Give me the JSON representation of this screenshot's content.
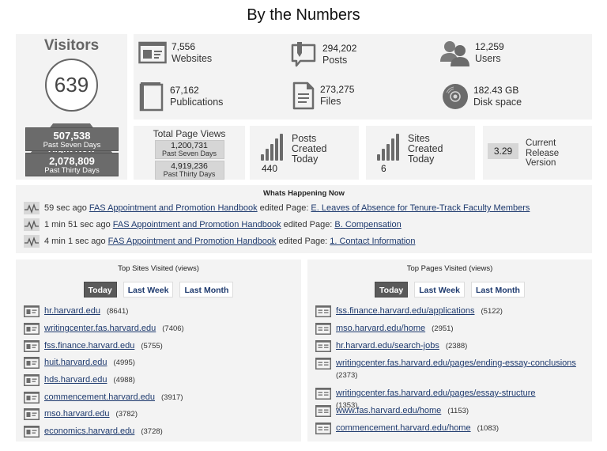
{
  "title": "By the Numbers",
  "visitors": {
    "title": "Visitors",
    "right_now_value": "639",
    "right_now_label": "Right Now",
    "seven_days_value": "507,538",
    "seven_days_label": "Past Seven Days",
    "thirty_days_value": "2,078,809",
    "thirty_days_label": "Past Thirty Days"
  },
  "stats": [
    {
      "icon": "website-icon",
      "value": "7,556",
      "label": "Websites"
    },
    {
      "icon": "posts-icon",
      "value": "294,202",
      "label": "Posts"
    },
    {
      "icon": "users-icon",
      "value": "12,259",
      "label": "Users"
    },
    {
      "icon": "book-icon",
      "value": "67,162",
      "label": "Publications"
    },
    {
      "icon": "file-icon",
      "value": "273,275",
      "label": "Files"
    },
    {
      "icon": "disk-icon",
      "value": "182.43 GB",
      "label": "Disk space"
    }
  ],
  "page_views": {
    "title": "Total Page Views",
    "seven_days_value": "1,200,731",
    "seven_days_label": "Past Seven Days",
    "thirty_days_value": "4,919,236",
    "thirty_days_label": "Past Thirty Days"
  },
  "posts_created": {
    "value": "440",
    "label_lines": [
      "Posts",
      "Created",
      "Today"
    ]
  },
  "sites_created": {
    "value": "6",
    "label_lines": [
      "Sites",
      "Created",
      "Today"
    ]
  },
  "release": {
    "version": "3.29",
    "label_lines": [
      "Current",
      "Release",
      "Version"
    ]
  },
  "happening": {
    "title": "Whats Happening Now",
    "items": [
      {
        "time": "59 sec ago",
        "site": "FAS Appointment and Promotion Handbook",
        "action": "edited Page:",
        "page": "E. Leaves of Absence for Tenure-Track Faculty Members"
      },
      {
        "time": "1 min 51 sec ago",
        "site": "FAS Appointment and Promotion Handbook",
        "action": "edited Page:",
        "page": "B. Compensation"
      },
      {
        "time": "4 min 1 sec ago",
        "site": "FAS Appointment and Promotion Handbook",
        "action": "edited Page:",
        "page": "1. Contact Information"
      }
    ]
  },
  "top_sites": {
    "title": "Top Sites Visited (views)",
    "tabs": [
      "Today",
      "Last Week",
      "Last Month"
    ],
    "active_tab": "Today",
    "items": [
      {
        "name": "hr.harvard.edu",
        "count": "(8641)"
      },
      {
        "name": "writingcenter.fas.harvard.edu",
        "count": "(7406)"
      },
      {
        "name": "fss.finance.harvard.edu",
        "count": "(5755)"
      },
      {
        "name": "huit.harvard.edu",
        "count": "(4995)"
      },
      {
        "name": "hds.harvard.edu",
        "count": "(4988)"
      },
      {
        "name": "commencement.harvard.edu",
        "count": "(3917)"
      },
      {
        "name": "mso.harvard.edu",
        "count": "(3782)"
      },
      {
        "name": "economics.harvard.edu",
        "count": "(3728)"
      }
    ]
  },
  "top_pages": {
    "title": "Top Pages Visited (views)",
    "tabs": [
      "Today",
      "Last Week",
      "Last Month"
    ],
    "active_tab": "Today",
    "items": [
      {
        "name": "fss.finance.harvard.edu/applications",
        "count": "(5122)"
      },
      {
        "name": "mso.harvard.edu/home",
        "count": "(2951)"
      },
      {
        "name": "hr.harvard.edu/search-jobs",
        "count": "(2388)"
      },
      {
        "name": "writingcenter.fas.harvard.edu/pages/ending-essay-conclusions",
        "count": "(2373)"
      },
      {
        "name": "writingcenter.fas.harvard.edu/pages/essay-structure",
        "count": "(1353)"
      },
      {
        "name": "www.fas.harvard.edu/home",
        "count": "(1153)"
      },
      {
        "name": "commencement.harvard.edu/home",
        "count": "(1083)"
      }
    ]
  },
  "colors": {
    "panel": "#f3f3f3",
    "dark_gray": "#6b6b6b",
    "link": "#1e3a6e",
    "active_tab": "#5a5a5a"
  }
}
